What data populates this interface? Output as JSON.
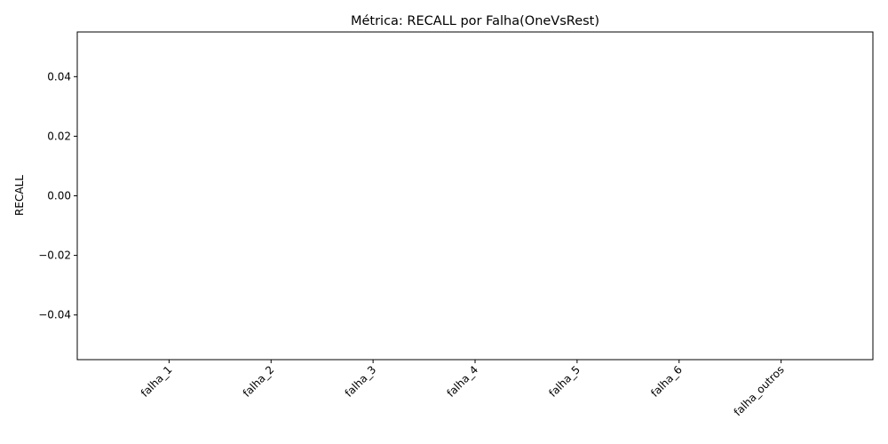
{
  "chart_data": {
    "type": "bar",
    "title": "Métrica: RECALL por Falha(OneVsRest)",
    "xlabel": "",
    "ylabel": "RECALL",
    "categories": [
      "falha_1",
      "falha_2",
      "falha_3",
      "falha_4",
      "falha_5",
      "falha_6",
      "falha_outros"
    ],
    "values": [
      0,
      0,
      0,
      0,
      0,
      0,
      0
    ],
    "ylim": [
      -0.055,
      0.055
    ],
    "yticks": [
      0.04,
      0.02,
      0.0,
      -0.02,
      -0.04
    ],
    "ytick_labels": [
      "0.04",
      "0.02",
      "0.00",
      "−0.02",
      "−0.04"
    ],
    "grid": false,
    "legend": "none",
    "bar_color": "#1f77b4"
  }
}
